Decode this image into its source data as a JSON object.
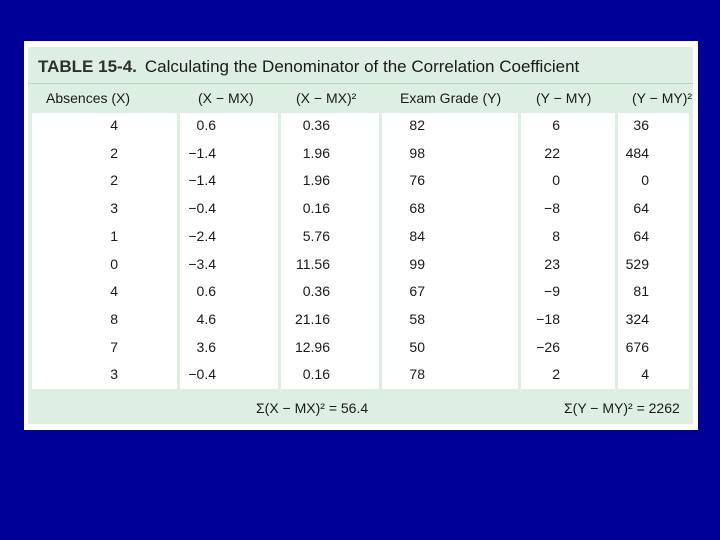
{
  "table": {
    "number": "TABLE 15-4.",
    "title": "Calculating the Denominator of the Correlation Coefficient",
    "headers": [
      "Absences (X)",
      "(X − MX)",
      "(X − MX)²",
      "Exam Grade (Y)",
      "(Y − MY)",
      "(Y − MY)²"
    ],
    "rows": [
      [
        "4",
        "0.6",
        "0.36",
        "82",
        "6",
        "36"
      ],
      [
        "2",
        "−1.4",
        "1.96",
        "98",
        "22",
        "484"
      ],
      [
        "2",
        "−1.4",
        "1.96",
        "76",
        "0",
        "0"
      ],
      [
        "3",
        "−0.4",
        "0.16",
        "68",
        "−8",
        "64"
      ],
      [
        "1",
        "−2.4",
        "5.76",
        "84",
        "8",
        "64"
      ],
      [
        "0",
        "−3.4",
        "11.56",
        "99",
        "23",
        "529"
      ],
      [
        "4",
        "0.6",
        "0.36",
        "67",
        "−9",
        "81"
      ],
      [
        "8",
        "4.6",
        "21.16",
        "58",
        "−18",
        "324"
      ],
      [
        "7",
        "3.6",
        "12.96",
        "50",
        "−26",
        "676"
      ],
      [
        "3",
        "−0.4",
        "0.16",
        "78",
        "2",
        "4"
      ]
    ],
    "sum_x": "Σ(X − MX)² = 56.4",
    "sum_y": "Σ(Y − MY)² = 2262"
  }
}
